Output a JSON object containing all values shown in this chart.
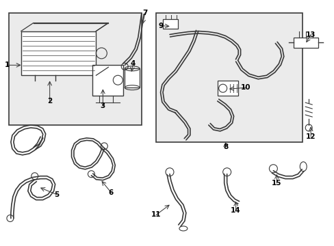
{
  "background_color": "#ffffff",
  "line_color": "#3a3a3a",
  "box_bg": "#ebebeb",
  "label_color": "#000000",
  "fig_width": 4.89,
  "fig_height": 3.6,
  "dpi": 100
}
